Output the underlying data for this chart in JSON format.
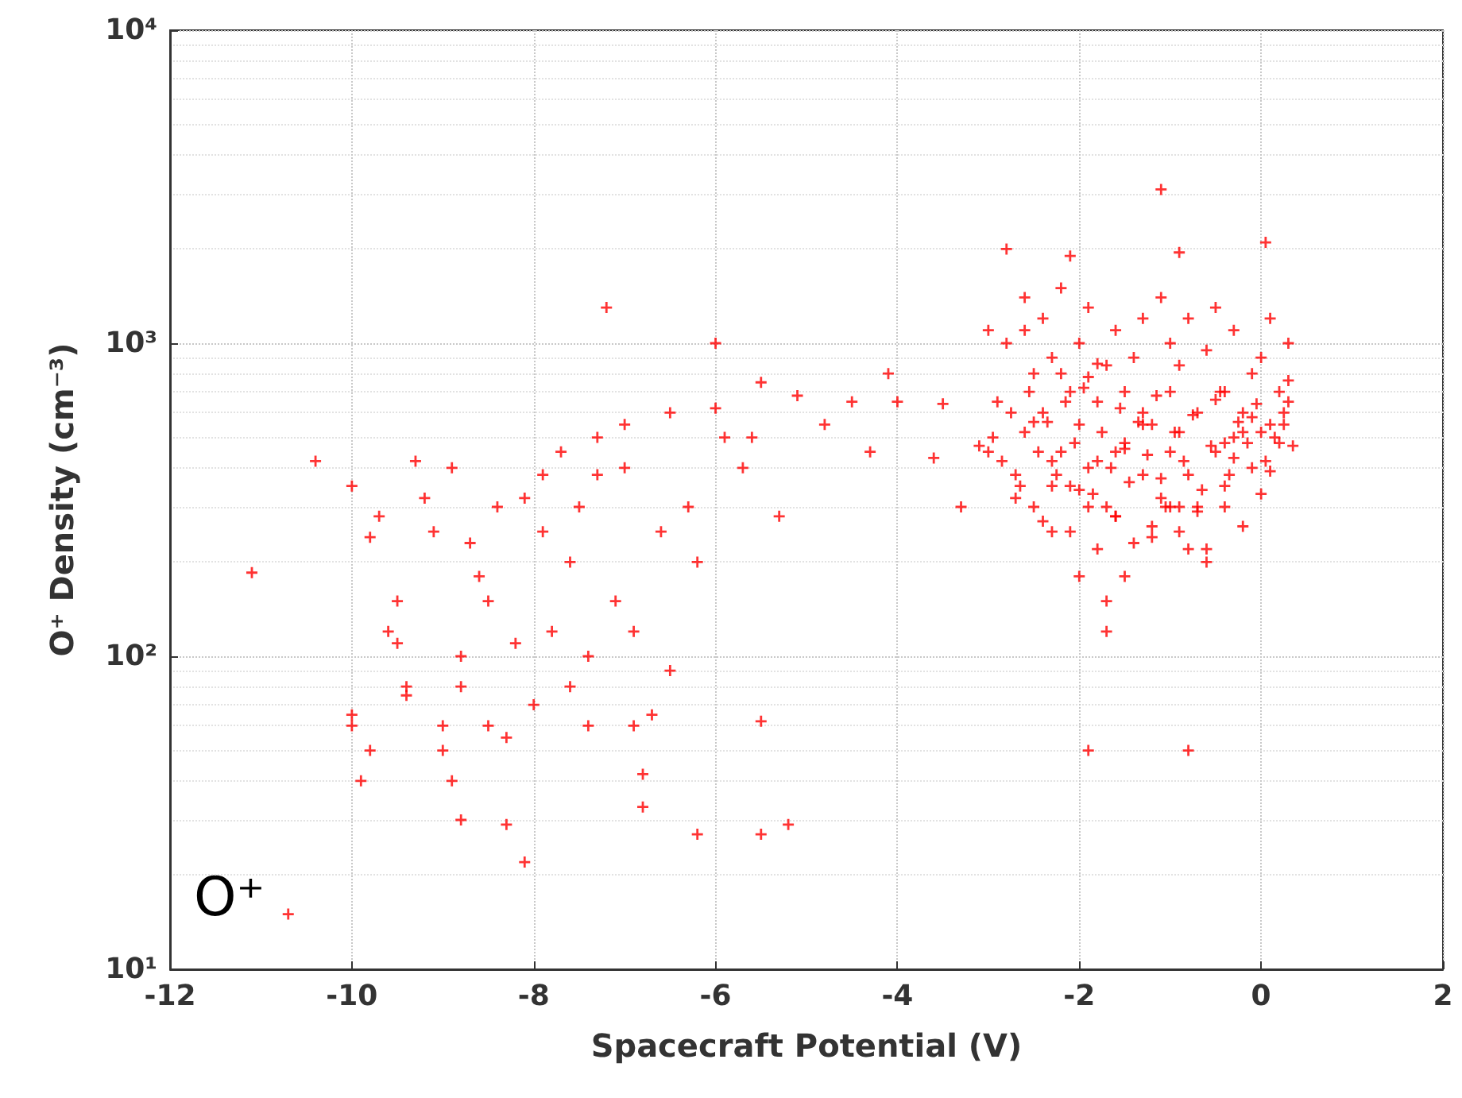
{
  "chart_data": {
    "type": "scatter",
    "xlabel": "Spacecraft Potential (V)",
    "ylabel": "O⁺ Density (cm⁻³)",
    "annotations": [
      "O⁺"
    ],
    "log": "y",
    "grid": true,
    "marker": "cross",
    "xlim": [
      -12,
      2
    ],
    "xticks": [
      -12,
      -10,
      -8,
      -6,
      -4,
      -2,
      0,
      2
    ],
    "ylim": [
      10,
      10000
    ],
    "yticks": [
      {
        "value": 10,
        "label": "10¹"
      },
      {
        "value": 100,
        "label": "10²"
      },
      {
        "value": 1000,
        "label": "10³"
      },
      {
        "value": 10000,
        "label": "10⁴"
      }
    ],
    "series": [
      {
        "color": "#ff0000",
        "x": [
          -11.1,
          -10.7,
          -10.4,
          -10.0,
          -10.0,
          -10.0,
          -9.9,
          -9.8,
          -9.8,
          -9.7,
          -9.6,
          -9.5,
          -9.5,
          -9.4,
          -9.4,
          -9.3,
          -9.2,
          -9.1,
          -9.0,
          -9.0,
          -8.9,
          -8.9,
          -8.8,
          -8.8,
          -8.8,
          -8.7,
          -8.6,
          -8.5,
          -8.5,
          -8.4,
          -8.3,
          -8.3,
          -8.2,
          -8.1,
          -8.1,
          -8.0,
          -7.9,
          -7.9,
          -7.8,
          -7.7,
          -7.6,
          -7.6,
          -7.5,
          -7.4,
          -7.4,
          -7.3,
          -7.3,
          -7.2,
          -7.1,
          -7.0,
          -7.0,
          -6.9,
          -6.9,
          -6.8,
          -6.8,
          -6.7,
          -6.6,
          -6.5,
          -6.5,
          -6.3,
          -6.2,
          -6.2,
          -6.0,
          -6.0,
          -5.9,
          -5.7,
          -5.6,
          -5.5,
          -5.5,
          -5.5,
          -5.3,
          -5.2,
          -5.1,
          -4.8,
          -4.5,
          -4.3,
          -4.1,
          -4.0,
          -3.6,
          -3.5,
          -3.3,
          -3.1,
          -3.0,
          -2.8,
          -2.1,
          -1.9,
          -1.7,
          -1.1,
          -0.8,
          0.05,
          -0.9,
          -3.0,
          -2.9,
          -2.8,
          -2.7,
          -2.6,
          -2.6,
          -2.5,
          -2.5,
          -2.4,
          -2.4,
          -2.3,
          -2.3,
          -2.2,
          -2.2,
          -2.1,
          -2.1,
          -2.0,
          -2.0,
          -2.0,
          -1.9,
          -1.9,
          -1.8,
          -1.8,
          -1.8,
          -1.7,
          -1.7,
          -1.6,
          -1.6,
          -1.5,
          -1.5,
          -1.4,
          -1.4,
          -1.3,
          -1.3,
          -1.2,
          -1.2,
          -1.1,
          -1.1,
          -1.0,
          -1.0,
          -1.0,
          -0.9,
          -0.9,
          -0.8,
          -0.8,
          -0.7,
          -0.7,
          -0.6,
          -0.6,
          -0.5,
          -0.5,
          -0.4,
          -0.4,
          -0.3,
          -0.3,
          -0.2,
          -0.2,
          -0.1,
          -0.1,
          0.0,
          0.0,
          0.1,
          0.1,
          0.2,
          0.2,
          0.3,
          0.3,
          -2.2,
          -1.6,
          -0.4,
          -2.6,
          -1.3,
          -0.6,
          0.25,
          -1.9,
          -0.9,
          -2.3,
          -1.5,
          -2.95,
          -2.85,
          -2.75,
          -2.65,
          -2.55,
          -2.45,
          -2.35,
          -2.25,
          -2.15,
          -2.05,
          -1.95,
          -1.85,
          -1.75,
          -1.65,
          -1.55,
          -1.45,
          -1.35,
          -1.25,
          -1.15,
          -1.05,
          -0.95,
          -0.85,
          -0.75,
          -0.65,
          -0.55,
          -0.45,
          -0.35,
          -0.25,
          -0.15,
          -0.05,
          0.05,
          0.15,
          0.25,
          0.35,
          -2.7,
          -2.5,
          -2.3,
          -2.1,
          -1.9,
          -1.7,
          -1.5,
          -1.3,
          -1.1,
          -0.9,
          -0.7,
          -0.5,
          -0.3,
          -0.1,
          0.1,
          0.3,
          -2.4,
          -2.0,
          -1.6,
          -1.2,
          -0.8,
          -0.4,
          0.0,
          -1.8,
          -1.0,
          -0.2
        ],
        "values": [
          185,
          15,
          420,
          350,
          65,
          60,
          40,
          50,
          240,
          280,
          120,
          110,
          150,
          80,
          75,
          420,
          320,
          250,
          60,
          50,
          400,
          40,
          100,
          80,
          30,
          230,
          180,
          60,
          150,
          300,
          55,
          29,
          110,
          320,
          22,
          70,
          250,
          380,
          120,
          450,
          200,
          80,
          300,
          100,
          60,
          500,
          380,
          1300,
          150,
          550,
          400,
          120,
          60,
          42,
          33,
          65,
          250,
          90,
          600,
          300,
          200,
          27,
          1000,
          620,
          500,
          400,
          500,
          750,
          62,
          27,
          280,
          29,
          680,
          550,
          650,
          450,
          800,
          650,
          430,
          640,
          300,
          470,
          1100,
          2000,
          1900,
          50,
          120,
          3100,
          50,
          2100,
          1950,
          450,
          650,
          1000,
          380,
          1400,
          520,
          800,
          300,
          600,
          1200,
          250,
          900,
          450,
          1500,
          350,
          700,
          180,
          550,
          1000,
          300,
          1300,
          220,
          650,
          420,
          150,
          850,
          280,
          1100,
          480,
          700,
          230,
          900,
          380,
          1200,
          550,
          260,
          1400,
          320,
          700,
          450,
          1000,
          250,
          850,
          380,
          1200,
          600,
          300,
          950,
          220,
          450,
          1300,
          350,
          700,
          500,
          1100,
          260,
          600,
          800,
          400,
          900,
          330,
          550,
          1200,
          480,
          700,
          650,
          1000,
          800,
          450,
          480,
          1100,
          550,
          200,
          600,
          400,
          300,
          350,
          180,
          500,
          420,
          600,
          350,
          700,
          450,
          560,
          380,
          650,
          480,
          720,
          330,
          520,
          400,
          620,
          360,
          560,
          440,
          680,
          300,
          520,
          420,
          590,
          340,
          470,
          700,
          380,
          560,
          480,
          640,
          420,
          500,
          550,
          470,
          320,
          560,
          420,
          250,
          780,
          300,
          460,
          600,
          370,
          520,
          290,
          660,
          430,
          580,
          390,
          760,
          270,
          340,
          280,
          240,
          220,
          300,
          520,
          860,
          300,
          520
        ]
      }
    ]
  }
}
